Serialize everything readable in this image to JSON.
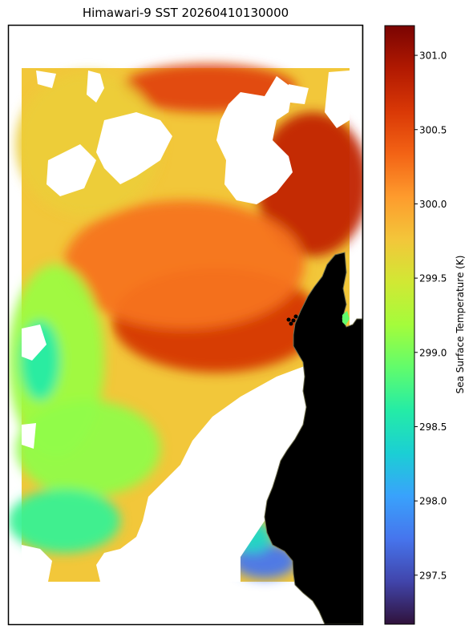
{
  "chart_data": {
    "type": "heatmap",
    "title": "Himawari-9 SST 20260410130000",
    "colorbar": {
      "label": "Sea Surface Temperature (K)",
      "range": [
        297.17,
        301.2
      ],
      "ticks": [
        {
          "value": 297.5,
          "label": "297.5"
        },
        {
          "value": 298.0,
          "label": "298.0"
        },
        {
          "value": 298.5,
          "label": "298.5"
        },
        {
          "value": 299.0,
          "label": "299.0"
        },
        {
          "value": 299.5,
          "label": "299.5"
        },
        {
          "value": 300.0,
          "label": "300.0"
        },
        {
          "value": 300.5,
          "label": "300.5"
        },
        {
          "value": 301.0,
          "label": "301.0"
        }
      ],
      "colormap": "turbo",
      "colormap_stops": [
        "#30123b",
        "#4145ab",
        "#4675ed",
        "#39a2fc",
        "#1bcfd4",
        "#24eca6",
        "#61fc6c",
        "#a4fc3b",
        "#d1e834",
        "#f3c63a",
        "#fe9b2d",
        "#f36315",
        "#d93806",
        "#b11901",
        "#7a0402"
      ]
    },
    "land_color": "#bfbf84",
    "markers_color": "#000000"
  }
}
